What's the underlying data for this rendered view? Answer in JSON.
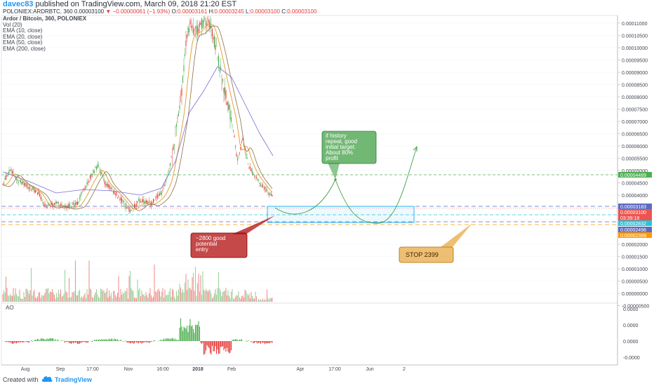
{
  "header": {
    "author": "davec83",
    "published": " published on TradingView.com, March 09, 2018 21:20 EST",
    "symbol": "POLONIEX:ARDRBTC, 360",
    "last": "0.00003100",
    "arrow": "▼",
    "change": "−0.00000061 (−1.93%)",
    "o_label": "O:",
    "o_value": "0.00003161",
    "h_label": "H:",
    "h_value": "0.00003245",
    "l_label": "L:",
    "l_value": "0.00003100",
    "c_label": "C:",
    "c_value": "0.00003100"
  },
  "legend": {
    "title": "Ardor / Bitcoin, 360, POLONIEX",
    "lines": [
      "Vol (20)",
      "EMA (10, close)",
      "EMA (20, close)",
      "EMA (50, close)",
      "EMA (200, close)"
    ]
  },
  "price_axis": {
    "ticks": [
      "0.00011000",
      "0.00010500",
      "0.00010000",
      "0.00009500",
      "0.00009000",
      "0.00008500",
      "0.00008000",
      "0.00007500",
      "0.00007000",
      "0.00006500",
      "0.00006000",
      "0.00005500",
      "0.00005000",
      "0.00004500",
      "0.00004000",
      "0.00003500",
      "0.00003000",
      "0.00002500",
      "0.00002000",
      "0.00001500",
      "0.00001000",
      "0.00000500",
      "0.00000000",
      "-0.00000500"
    ],
    "badges": [
      {
        "text": "0.00004489",
        "color": "#4caf50"
      },
      {
        "text": "0.00003183",
        "color": "#5c6bc0"
      },
      {
        "text": "0.00003100",
        "color": "#ef5350"
      },
      {
        "text": "03:39:18",
        "color": "#ef5350"
      },
      {
        "text": "0.00002832",
        "color": "#26c6da"
      },
      {
        "text": "0.00002496",
        "color": "#5c6bc0"
      },
      {
        "text": "0.00002389",
        "color": "#ff9800"
      }
    ]
  },
  "ao_axis": {
    "ticks": [
      "0.0000",
      "0.0000",
      "0.0000",
      "-0.0000"
    ]
  },
  "ao_label": "AO",
  "time_axis": [
    "Aug",
    "Sep",
    "17:00",
    "Nov",
    "16:00",
    "2018",
    "Feb",
    "Apr",
    "17:00",
    "Jun",
    "2"
  ],
  "annotations": {
    "target": [
      "if history",
      "repeat, good",
      "initial target.",
      "About 80%",
      "profit"
    ],
    "entry": [
      "~2800 good",
      "potential",
      "entry"
    ],
    "stop": "STOP 2399"
  },
  "footer": {
    "created": "Created with",
    "brand": "TradingView"
  },
  "colors": {
    "ema10": "#e6a23c",
    "ema50": "#7a6bd6",
    "up": "#4caf50",
    "down": "#e53935",
    "target_box": "#43a047",
    "entry_box": "#b71c1c",
    "stop_box": "#e08a00",
    "zone": "#29b6f6"
  }
}
